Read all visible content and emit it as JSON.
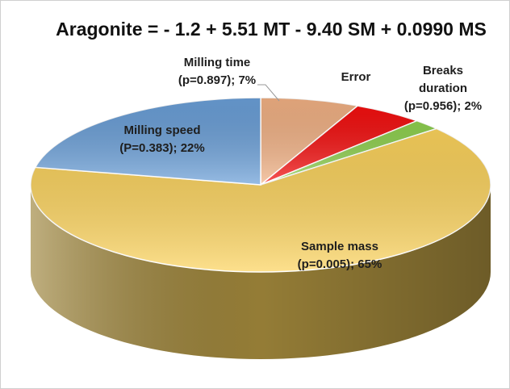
{
  "chart_data": {
    "type": "pie3d",
    "title": "Aragonite = - 1.2 + 5.51 MT - 9.40 SM + 0.0990 MS",
    "categories": [
      "Milling time",
      "Error",
      "Breaks duration",
      "Sample mass",
      "Milling speed"
    ],
    "values": [
      7,
      5,
      2,
      65,
      22
    ],
    "value_labels": [
      "(p=0.897); 7%",
      "",
      "(p=0.956); 2%",
      "(p=0.005); 65%",
      "(P=0.383); 22%"
    ],
    "colors": [
      "#f2b184",
      "#f50f0f",
      "#8fd14f",
      "#fcd35c",
      "#6a9fd8"
    ]
  }
}
